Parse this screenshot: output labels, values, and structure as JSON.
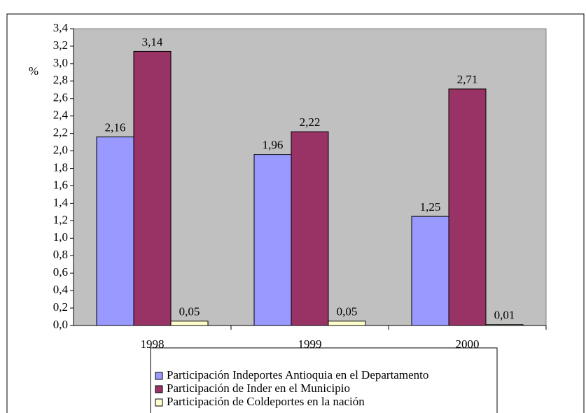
{
  "chart_data": {
    "type": "bar",
    "y_label": "%",
    "categories": [
      "1998",
      "1999",
      "2000"
    ],
    "series": [
      {
        "name": "Participación Indeportes Antioquia en el Departamento",
        "color": "#9999ff",
        "values": [
          2.16,
          1.96,
          1.25
        ],
        "value_labels": [
          "2,16",
          "1,96",
          "1,25"
        ]
      },
      {
        "name": "Participación de Inder en el Municipio",
        "color": "#993366",
        "values": [
          3.14,
          2.22,
          2.71
        ],
        "value_labels": [
          "3,14",
          "2,22",
          "2,71"
        ]
      },
      {
        "name": "Participación de Coldeportes en la nación",
        "color": "#ffffcc",
        "values": [
          0.05,
          0.05,
          0.01
        ],
        "value_labels": [
          "0,05",
          "0,05",
          "0,01"
        ]
      }
    ],
    "ylim": [
      0,
      3.4
    ],
    "yticks": [
      {
        "value": 0,
        "label": "0,0"
      },
      {
        "value": 0.2,
        "label": "0,2"
      },
      {
        "value": 0.4,
        "label": "0,4"
      },
      {
        "value": 0.6,
        "label": "0,6"
      },
      {
        "value": 0.8,
        "label": "0,8"
      },
      {
        "value": 1.0,
        "label": "1,0"
      },
      {
        "value": 1.2,
        "label": "1,2"
      },
      {
        "value": 1.4,
        "label": "1,4"
      },
      {
        "value": 1.6,
        "label": "1,6"
      },
      {
        "value": 1.8,
        "label": "1,8"
      },
      {
        "value": 2.0,
        "label": "2,0"
      },
      {
        "value": 2.2,
        "label": "2,2"
      },
      {
        "value": 2.4,
        "label": "2,4"
      },
      {
        "value": 2.6,
        "label": "2,6"
      },
      {
        "value": 2.8,
        "label": "2,8"
      },
      {
        "value": 3.0,
        "label": "3,0"
      },
      {
        "value": 3.2,
        "label": "3,2"
      },
      {
        "value": 3.4,
        "label": "3,4"
      }
    ],
    "grid": false,
    "plot_background": "#c0c0c0"
  }
}
